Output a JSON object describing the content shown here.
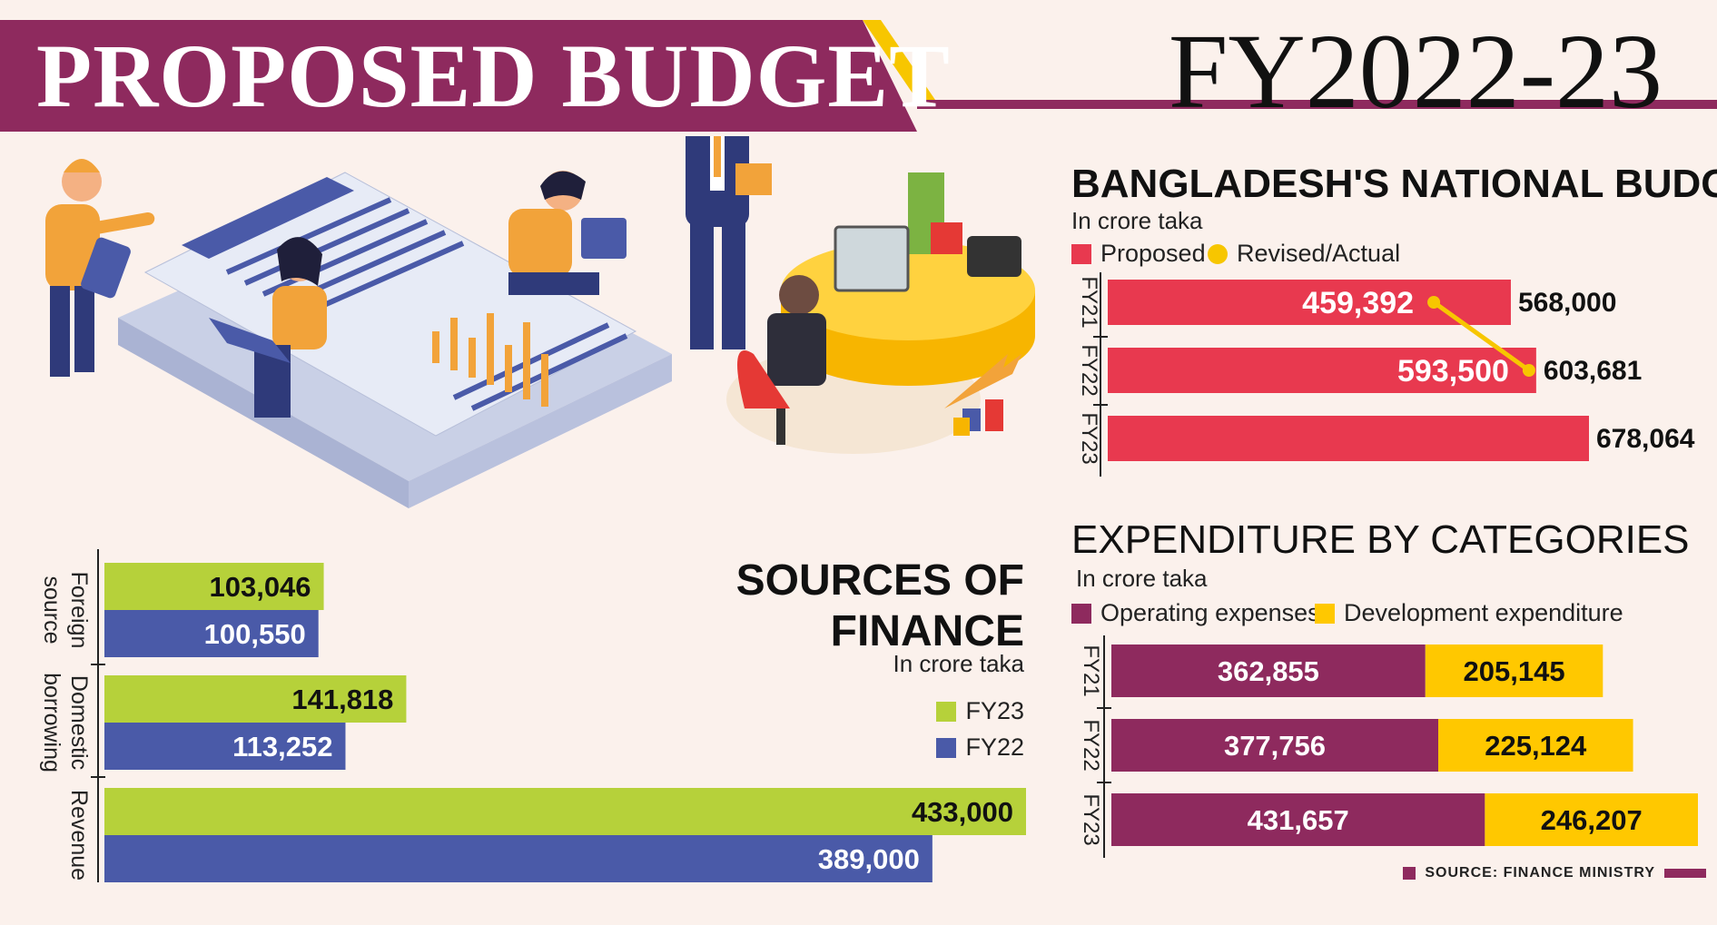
{
  "header": {
    "title": "PROPOSED BUDGET",
    "fiscal_year": "FY2022-23"
  },
  "colors": {
    "header_band": "#8e2a5e",
    "accent_yellow": "#f7c600",
    "proposed": "#e8394f",
    "revised": "#f7c600",
    "operating": "#8e2a5e",
    "development": "#ffc800",
    "fy23": "#b6d13a",
    "fy22": "#4a5aa8",
    "background": "#fbf1ec"
  },
  "chart_data": [
    {
      "id": "national_budget",
      "type": "bar",
      "title": "BANGLADESH'S NATIONAL BUDGET",
      "unit": "In crore taka",
      "orientation": "horizontal",
      "categories": [
        "FY21",
        "FY22",
        "FY23"
      ],
      "series": [
        {
          "name": "Proposed",
          "values": [
            568000,
            603681,
            678064
          ]
        },
        {
          "name": "Revised/Actual",
          "values": [
            459392,
            593500,
            null
          ]
        }
      ],
      "xlim": [
        0,
        678064
      ],
      "grid": false
    },
    {
      "id": "expenditure",
      "type": "bar",
      "stacked": true,
      "title": "EXPENDITURE BY CATEGORIES",
      "unit": "In crore taka",
      "orientation": "horizontal",
      "categories": [
        "FY21",
        "FY22",
        "FY23"
      ],
      "series": [
        {
          "name": "Operating expenses",
          "values": [
            362855,
            377756,
            431657
          ]
        },
        {
          "name": "Development expenditure",
          "values": [
            205145,
            225124,
            246207
          ]
        }
      ],
      "grid": false
    },
    {
      "id": "sources",
      "type": "bar",
      "title": "SOURCES OF FINANCE",
      "unit": "In crore taka",
      "orientation": "horizontal",
      "categories": [
        "Foreign source",
        "Domestic borrowing",
        "Revenue"
      ],
      "series": [
        {
          "name": "FY23",
          "values": [
            103046,
            141818,
            433000
          ]
        },
        {
          "name": "FY22",
          "values": [
            100550,
            113252,
            389000
          ]
        }
      ],
      "xlim": [
        0,
        433000
      ],
      "legend": "right",
      "grid": false
    }
  ],
  "source": "SOURCE: FINANCE MINISTRY"
}
